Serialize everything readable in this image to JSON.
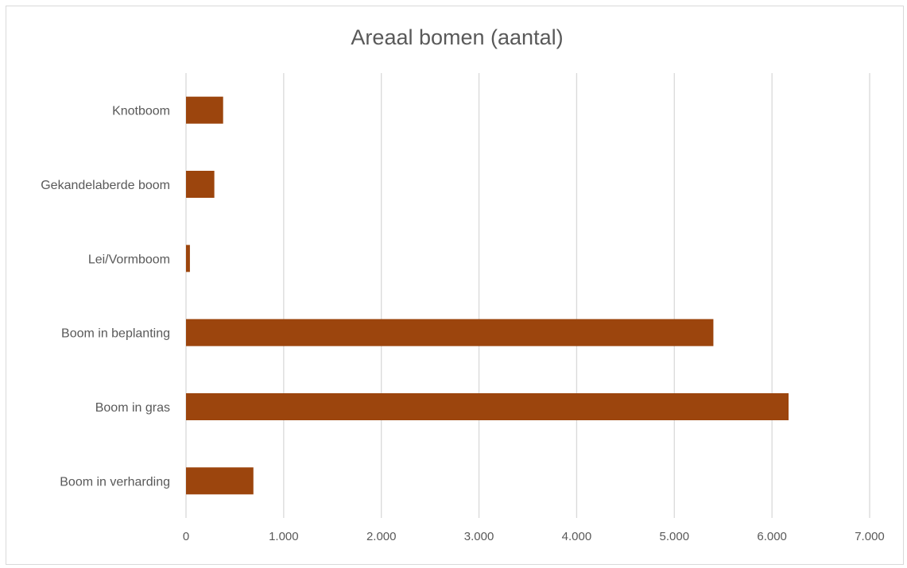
{
  "chart_data": {
    "type": "bar",
    "orientation": "horizontal",
    "title": "Areaal bomen (aantal)",
    "categories": [
      "Knotboom",
      "Gekandelaberde boom",
      "Lei/Vormboom",
      "Boom in beplanting",
      "Boom in gras",
      "Boom in verharding"
    ],
    "values": [
      380,
      290,
      40,
      5400,
      6170,
      690
    ],
    "xlim": [
      0,
      7000
    ],
    "x_ticks": [
      0,
      1000,
      2000,
      3000,
      4000,
      5000,
      6000,
      7000
    ],
    "x_tick_labels": [
      "0",
      "1.000",
      "2.000",
      "3.000",
      "4.000",
      "5.000",
      "6.000",
      "7.000"
    ],
    "grid": "vertical",
    "legend": "none",
    "bar_color": "#9C450D",
    "grid_color": "#d9d9d9"
  }
}
